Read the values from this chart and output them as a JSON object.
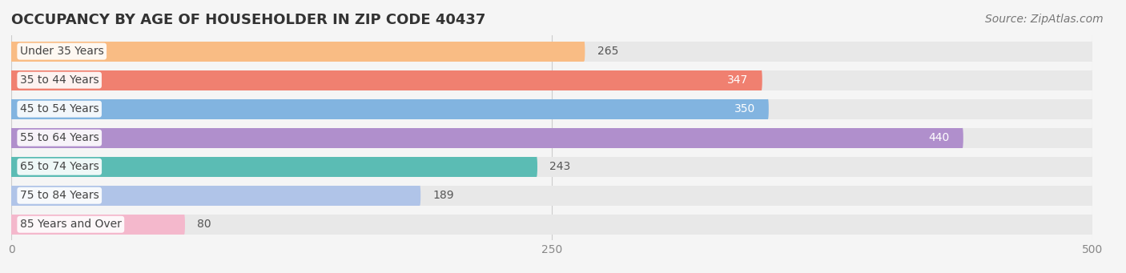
{
  "title": "OCCUPANCY BY AGE OF HOUSEHOLDER IN ZIP CODE 40437",
  "source": "Source: ZipAtlas.com",
  "categories": [
    "Under 35 Years",
    "35 to 44 Years",
    "45 to 54 Years",
    "55 to 64 Years",
    "65 to 74 Years",
    "75 to 84 Years",
    "85 Years and Over"
  ],
  "values": [
    265,
    347,
    350,
    440,
    243,
    189,
    80
  ],
  "bar_colors": [
    "#f9bc84",
    "#f08070",
    "#82b4e0",
    "#b08fcc",
    "#5bbcb4",
    "#b0c4e8",
    "#f4b8cc"
  ],
  "bar_bg_color": "#e8e8e8",
  "xlim": [
    0,
    500
  ],
  "xticks": [
    0,
    250,
    500
  ],
  "background_color": "#f5f5f5",
  "title_fontsize": 13,
  "source_fontsize": 10,
  "label_fontsize": 10,
  "value_fontsize": 10
}
